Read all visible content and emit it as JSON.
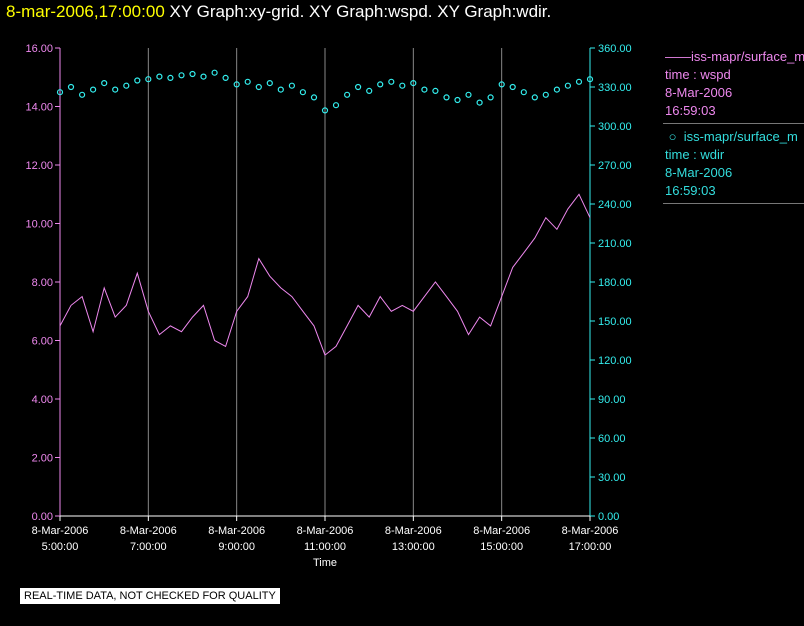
{
  "header": {
    "timestamp": "8-mar-2006,17:00:00",
    "titles": "XY Graph:xy-grid.  XY Graph:wspd.  XY Graph:wdir."
  },
  "colors": {
    "wspd": "#ee88ee",
    "wdir": "#33eeee",
    "grid": "#888888"
  },
  "legend": [
    {
      "line1": "iss-mapr/surface_m",
      "line2": "time : wspd",
      "line3": "8-Mar-2006",
      "line4": "16:59:03"
    },
    {
      "line1": "iss-mapr/surface_m",
      "line2": "time : wdir",
      "line3": "8-Mar-2006",
      "line4": "16:59:03"
    }
  ],
  "notice": "REAL-TIME DATA, NOT CHECKED FOR QUALITY",
  "chart_data": {
    "type": "line",
    "xlabel": "Time",
    "x_range_hours": [
      5,
      17
    ],
    "x_ticks": [
      {
        "date": "8-Mar-2006",
        "time": "5:00:00",
        "hour": 5
      },
      {
        "date": "8-Mar-2006",
        "time": "7:00:00",
        "hour": 7
      },
      {
        "date": "8-Mar-2006",
        "time": "9:00:00",
        "hour": 9
      },
      {
        "date": "8-Mar-2006",
        "time": "11:00:00",
        "hour": 11
      },
      {
        "date": "8-Mar-2006",
        "time": "13:00:00",
        "hour": 13
      },
      {
        "date": "8-Mar-2006",
        "time": "15:00:00",
        "hour": 15
      },
      {
        "date": "8-Mar-2006",
        "time": "17:00:00",
        "hour": 17
      }
    ],
    "y_left": {
      "range": [
        0,
        16
      ],
      "ticks": [
        "0.00",
        "2.00",
        "4.00",
        "6.00",
        "8.00",
        "10.00",
        "12.00",
        "14.00",
        "16.00"
      ]
    },
    "y_right": {
      "range": [
        0,
        360
      ],
      "ticks": [
        "0.00",
        "30.00",
        "60.00",
        "90.00",
        "120.00",
        "150.00",
        "180.00",
        "210.00",
        "240.00",
        "270.00",
        "300.00",
        "330.00",
        "360.00"
      ]
    },
    "grid": "vertical",
    "series": [
      {
        "name": "time : wspd",
        "axis": "left",
        "style": "line",
        "x": [
          5.0,
          5.25,
          5.5,
          5.75,
          6.0,
          6.25,
          6.5,
          6.75,
          7.0,
          7.25,
          7.5,
          7.75,
          8.0,
          8.25,
          8.5,
          8.75,
          9.0,
          9.25,
          9.5,
          9.75,
          10.0,
          10.25,
          10.5,
          10.75,
          11.0,
          11.25,
          11.5,
          11.75,
          12.0,
          12.25,
          12.5,
          12.75,
          13.0,
          13.25,
          13.5,
          13.75,
          14.0,
          14.25,
          14.5,
          14.75,
          15.0,
          15.25,
          15.5,
          15.75,
          16.0,
          16.25,
          16.5,
          16.75,
          17.0
        ],
        "y": [
          6.5,
          7.2,
          7.5,
          6.3,
          7.8,
          6.8,
          7.2,
          8.3,
          7.0,
          6.2,
          6.5,
          6.3,
          6.8,
          7.2,
          6.0,
          5.8,
          7.0,
          7.5,
          8.8,
          8.2,
          7.8,
          7.5,
          7.0,
          6.5,
          5.5,
          5.8,
          6.5,
          7.2,
          6.8,
          7.5,
          7.0,
          7.2,
          7.0,
          7.5,
          8.0,
          7.5,
          7.0,
          6.2,
          6.8,
          6.5,
          7.5,
          8.5,
          9.0,
          9.5,
          10.2,
          9.8,
          10.5,
          11.0,
          10.2
        ]
      },
      {
        "name": "time : wdir",
        "axis": "right",
        "style": "points",
        "x": [
          5.0,
          5.25,
          5.5,
          5.75,
          6.0,
          6.25,
          6.5,
          6.75,
          7.0,
          7.25,
          7.5,
          7.75,
          8.0,
          8.25,
          8.5,
          8.75,
          9.0,
          9.25,
          9.5,
          9.75,
          10.0,
          10.25,
          10.5,
          10.75,
          11.0,
          11.25,
          11.5,
          11.75,
          12.0,
          12.25,
          12.5,
          12.75,
          13.0,
          13.25,
          13.5,
          13.75,
          14.0,
          14.25,
          14.5,
          14.75,
          15.0,
          15.25,
          15.5,
          15.75,
          16.0,
          16.25,
          16.5,
          16.75,
          17.0
        ],
        "y": [
          326,
          330,
          324,
          328,
          333,
          328,
          331,
          335,
          336,
          338,
          337,
          339,
          340,
          338,
          341,
          337,
          332,
          334,
          330,
          333,
          328,
          331,
          326,
          322,
          312,
          316,
          324,
          330,
          327,
          332,
          334,
          331,
          333,
          328,
          327,
          322,
          320,
          324,
          318,
          322,
          332,
          330,
          326,
          322,
          324,
          328,
          331,
          334,
          336
        ]
      }
    ]
  }
}
